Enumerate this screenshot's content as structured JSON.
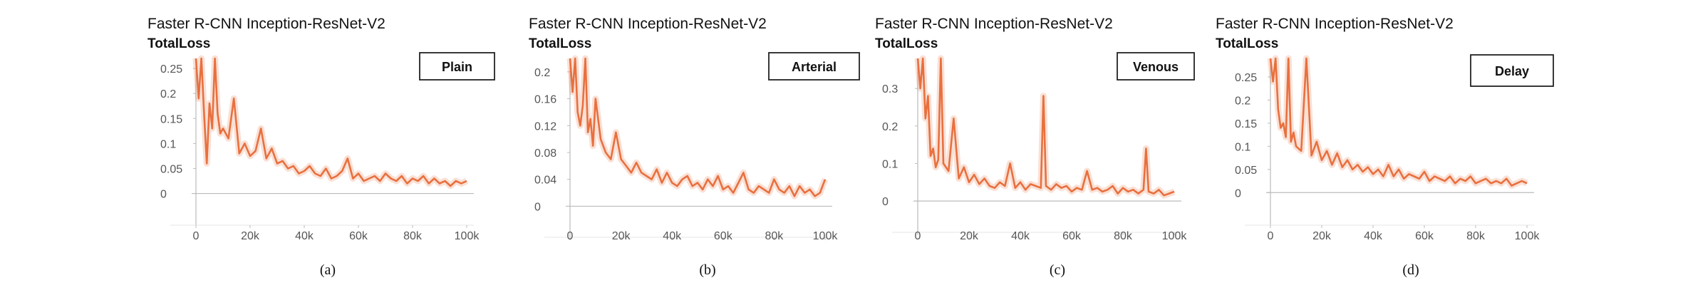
{
  "chart_data": [
    {
      "type": "line",
      "title": "Faster R-CNN Inception-ResNet-V2",
      "subtitle": "TotalLoss",
      "legend": "Plain",
      "legend_placement": "top-right",
      "caption": "(a)",
      "grid": false,
      "xlim": [
        0,
        100000
      ],
      "ylim": [
        -0.012,
        0.27
      ],
      "x_ticks": [
        0,
        20000,
        40000,
        60000,
        80000,
        100000
      ],
      "x_tick_labels": [
        "0",
        "20k",
        "40k",
        "60k",
        "80k",
        "100k"
      ],
      "y_ticks": [
        0,
        0.05,
        0.1,
        0.15,
        0.2,
        0.25
      ],
      "y_tick_labels": [
        "0",
        "0.05",
        "0.1",
        "0.15",
        "0.2",
        "0.25"
      ],
      "series": [
        {
          "color": "#e8703f",
          "x": [
            0,
            1000,
            2000,
            3000,
            4000,
            5000,
            6000,
            7000,
            8000,
            9000,
            10000,
            12000,
            14000,
            16000,
            18000,
            20000,
            22000,
            24000,
            26000,
            28000,
            30000,
            32000,
            34000,
            36000,
            38000,
            40000,
            42000,
            44000,
            46000,
            48000,
            50000,
            52000,
            54000,
            56000,
            58000,
            60000,
            62000,
            64000,
            66000,
            68000,
            70000,
            72000,
            74000,
            76000,
            78000,
            80000,
            82000,
            84000,
            86000,
            88000,
            90000,
            92000,
            94000,
            96000,
            98000,
            100000
          ],
          "y": [
            0.27,
            0.19,
            0.27,
            0.16,
            0.06,
            0.18,
            0.13,
            0.27,
            0.16,
            0.12,
            0.13,
            0.11,
            0.19,
            0.08,
            0.1,
            0.075,
            0.085,
            0.13,
            0.07,
            0.09,
            0.06,
            0.065,
            0.05,
            0.055,
            0.04,
            0.045,
            0.055,
            0.04,
            0.035,
            0.05,
            0.03,
            0.035,
            0.045,
            0.07,
            0.03,
            0.04,
            0.025,
            0.03,
            0.035,
            0.025,
            0.04,
            0.03,
            0.025,
            0.035,
            0.02,
            0.03,
            0.025,
            0.035,
            0.02,
            0.03,
            0.02,
            0.025,
            0.015,
            0.025,
            0.02,
            0.025
          ]
        }
      ]
    },
    {
      "type": "line",
      "title": "Faster R-CNN Inception-ResNet-V2",
      "subtitle": "TotalLoss",
      "legend": "Arterial",
      "legend_placement": "top-right",
      "caption": "(b)",
      "grid": false,
      "xlim": [
        0,
        100000
      ],
      "ylim": [
        -0.008,
        0.22
      ],
      "x_ticks": [
        0,
        20000,
        40000,
        60000,
        80000,
        100000
      ],
      "x_tick_labels": [
        "0",
        "20k",
        "40k",
        "60k",
        "80k",
        "100k"
      ],
      "y_ticks": [
        0,
        0.04,
        0.08,
        0.12,
        0.16,
        0.2
      ],
      "y_tick_labels": [
        "0",
        "0.04",
        "0.08",
        "0.12",
        "0.16",
        "0.2"
      ],
      "series": [
        {
          "color": "#e8703f",
          "x": [
            0,
            1000,
            2000,
            3000,
            4000,
            5000,
            6000,
            7000,
            8000,
            9000,
            10000,
            12000,
            14000,
            16000,
            18000,
            20000,
            22000,
            24000,
            26000,
            28000,
            30000,
            32000,
            34000,
            36000,
            38000,
            40000,
            42000,
            44000,
            46000,
            48000,
            50000,
            52000,
            54000,
            56000,
            58000,
            60000,
            62000,
            64000,
            66000,
            68000,
            70000,
            72000,
            74000,
            76000,
            78000,
            80000,
            82000,
            84000,
            86000,
            88000,
            90000,
            92000,
            94000,
            96000,
            98000,
            100000
          ],
          "y": [
            0.22,
            0.17,
            0.22,
            0.14,
            0.12,
            0.15,
            0.22,
            0.11,
            0.13,
            0.09,
            0.16,
            0.1,
            0.08,
            0.07,
            0.11,
            0.07,
            0.06,
            0.05,
            0.065,
            0.05,
            0.045,
            0.04,
            0.055,
            0.035,
            0.05,
            0.035,
            0.03,
            0.04,
            0.045,
            0.03,
            0.035,
            0.025,
            0.04,
            0.03,
            0.045,
            0.025,
            0.03,
            0.02,
            0.035,
            0.05,
            0.025,
            0.02,
            0.03,
            0.025,
            0.02,
            0.04,
            0.025,
            0.02,
            0.03,
            0.015,
            0.03,
            0.02,
            0.025,
            0.015,
            0.02,
            0.04
          ]
        }
      ]
    },
    {
      "type": "line",
      "title": "Faster R-CNN Inception-ResNet-V2",
      "subtitle": "TotalLoss",
      "legend": "Venous",
      "legend_placement": "top-right",
      "caption": "(c)",
      "grid": false,
      "xlim": [
        0,
        100000
      ],
      "ylim": [
        -0.015,
        0.38
      ],
      "x_ticks": [
        0,
        20000,
        40000,
        60000,
        80000,
        100000
      ],
      "x_tick_labels": [
        "0",
        "20k",
        "40k",
        "60k",
        "80k",
        "100k"
      ],
      "y_ticks": [
        0,
        0.1,
        0.2,
        0.3
      ],
      "y_tick_labels": [
        "0",
        "0.1",
        "0.2",
        "0.3"
      ],
      "series": [
        {
          "color": "#e8703f",
          "x": [
            0,
            1000,
            2000,
            3000,
            4000,
            5000,
            6000,
            7000,
            8000,
            9000,
            10000,
            12000,
            14000,
            16000,
            18000,
            20000,
            22000,
            24000,
            26000,
            28000,
            30000,
            32000,
            34000,
            36000,
            38000,
            40000,
            42000,
            44000,
            46000,
            48000,
            49000,
            50000,
            52000,
            54000,
            56000,
            58000,
            60000,
            62000,
            64000,
            66000,
            68000,
            70000,
            72000,
            74000,
            76000,
            78000,
            80000,
            82000,
            84000,
            86000,
            88000,
            89000,
            90000,
            92000,
            94000,
            96000,
            98000,
            100000
          ],
          "y": [
            0.38,
            0.3,
            0.38,
            0.22,
            0.28,
            0.12,
            0.14,
            0.09,
            0.11,
            0.38,
            0.1,
            0.08,
            0.22,
            0.06,
            0.09,
            0.05,
            0.07,
            0.045,
            0.06,
            0.04,
            0.035,
            0.05,
            0.04,
            0.1,
            0.035,
            0.05,
            0.03,
            0.045,
            0.04,
            0.035,
            0.28,
            0.04,
            0.03,
            0.045,
            0.035,
            0.04,
            0.025,
            0.035,
            0.03,
            0.08,
            0.03,
            0.035,
            0.025,
            0.03,
            0.04,
            0.02,
            0.035,
            0.025,
            0.03,
            0.02,
            0.03,
            0.14,
            0.025,
            0.02,
            0.03,
            0.015,
            0.02,
            0.025
          ]
        }
      ]
    },
    {
      "type": "line",
      "title": "Faster R-CNN Inception-ResNet-V2",
      "subtitle": "TotalLoss",
      "legend": "Delay",
      "legend_placement": "top-right",
      "caption": "(d)",
      "grid": false,
      "xlim": [
        0,
        100000
      ],
      "ylim": [
        -0.015,
        0.29
      ],
      "x_ticks": [
        0,
        20000,
        40000,
        60000,
        80000,
        100000
      ],
      "x_tick_labels": [
        "0",
        "20k",
        "40k",
        "60k",
        "80k",
        "100k"
      ],
      "y_ticks": [
        0,
        0.05,
        0.1,
        0.15,
        0.2,
        0.25
      ],
      "y_tick_labels": [
        "0",
        "0.05",
        "0.1",
        "0.15",
        "0.2",
        "0.25"
      ],
      "series": [
        {
          "color": "#e8703f",
          "x": [
            0,
            1000,
            2000,
            3000,
            4000,
            5000,
            6000,
            7000,
            8000,
            9000,
            10000,
            12000,
            14000,
            16000,
            18000,
            20000,
            22000,
            24000,
            26000,
            28000,
            30000,
            32000,
            34000,
            36000,
            38000,
            40000,
            42000,
            44000,
            46000,
            48000,
            50000,
            52000,
            54000,
            56000,
            58000,
            60000,
            62000,
            64000,
            66000,
            68000,
            70000,
            72000,
            74000,
            76000,
            78000,
            80000,
            82000,
            84000,
            86000,
            88000,
            90000,
            92000,
            94000,
            96000,
            98000,
            100000
          ],
          "y": [
            0.29,
            0.24,
            0.29,
            0.18,
            0.14,
            0.15,
            0.12,
            0.29,
            0.11,
            0.13,
            0.1,
            0.09,
            0.29,
            0.08,
            0.11,
            0.07,
            0.09,
            0.06,
            0.085,
            0.055,
            0.07,
            0.05,
            0.06,
            0.045,
            0.055,
            0.04,
            0.05,
            0.035,
            0.06,
            0.035,
            0.05,
            0.03,
            0.04,
            0.035,
            0.03,
            0.045,
            0.025,
            0.035,
            0.03,
            0.025,
            0.035,
            0.02,
            0.03,
            0.025,
            0.035,
            0.02,
            0.025,
            0.03,
            0.02,
            0.025,
            0.02,
            0.03,
            0.015,
            0.02,
            0.025,
            0.02
          ]
        }
      ]
    }
  ]
}
